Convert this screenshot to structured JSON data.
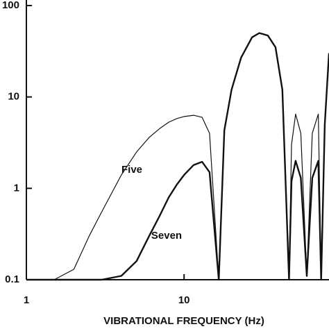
{
  "chart_data": {
    "type": "line",
    "x_label": "VIBRATIONAL FREQUENCY (Hz)",
    "x": [
      1,
      1.5,
      2,
      2.5,
      3,
      4,
      5,
      6,
      7,
      8,
      9,
      10,
      11.5,
      13,
      14.5,
      16.6,
      18,
      20,
      23,
      27,
      30,
      34,
      38,
      42,
      46.3,
      48,
      51,
      55,
      60,
      65,
      71,
      74,
      78,
      83
    ],
    "series": [
      {
        "name": "Five",
        "color": "#111111",
        "width": 1.2,
        "values": [
          0.1,
          0.1,
          0.13,
          0.3,
          0.55,
          1.4,
          2.5,
          3.6,
          4.5,
          5.3,
          5.8,
          6.1,
          6.3,
          6,
          4,
          0.1,
          4.5,
          12,
          27,
          45,
          50,
          47,
          35,
          12,
          0.1,
          3,
          6.5,
          4,
          0.11,
          4,
          6.5,
          0.1,
          5,
          30
        ]
      },
      {
        "name": "Seven",
        "color": "#111111",
        "width": 2.4,
        "values": [
          0.1,
          0.1,
          0.1,
          0.1,
          0.1,
          0.11,
          0.16,
          0.3,
          0.5,
          0.8,
          1.1,
          1.4,
          1.8,
          1.95,
          1.5,
          0.1,
          4.3,
          12,
          27,
          45,
          50,
          47,
          35,
          12,
          0.1,
          1.2,
          2,
          1.3,
          0.11,
          1.3,
          2,
          0.1,
          5,
          30
        ]
      }
    ],
    "xlim": [
      1,
      83
    ],
    "ylim": [
      0.1,
      100
    ],
    "xticks": [
      1,
      10
    ],
    "yticks": [
      0.1,
      1,
      10,
      100
    ],
    "log_x": true,
    "log_y": true
  }
}
